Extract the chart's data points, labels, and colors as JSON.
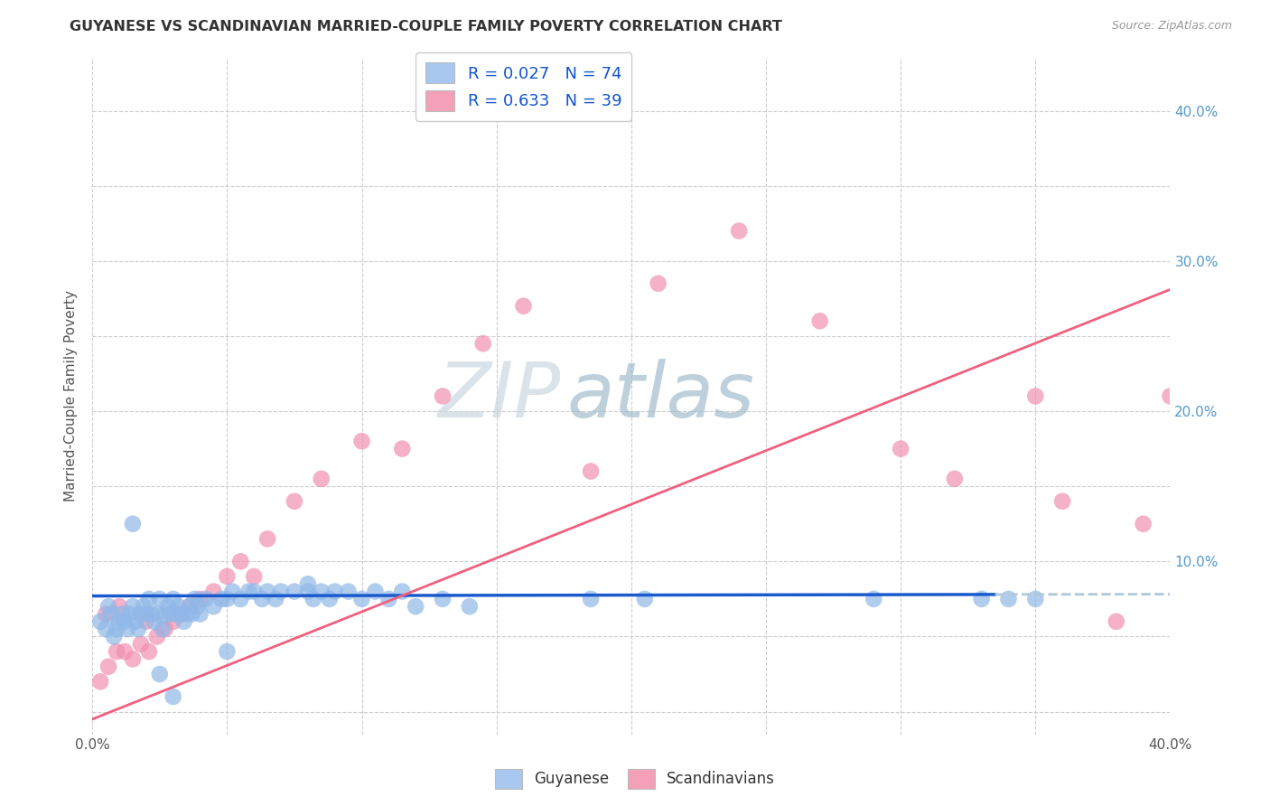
{
  "title": "GUYANESE VS SCANDINAVIAN MARRIED-COUPLE FAMILY POVERTY CORRELATION CHART",
  "source": "Source: ZipAtlas.com",
  "ylabel": "Married-Couple Family Poverty",
  "xlim": [
    0.0,
    0.4
  ],
  "ylim": [
    0.0,
    0.42
  ],
  "x_ticks": [
    0.0,
    0.05,
    0.1,
    0.15,
    0.2,
    0.25,
    0.3,
    0.35,
    0.4
  ],
  "y_ticks": [
    0.0,
    0.05,
    0.1,
    0.15,
    0.2,
    0.25,
    0.3,
    0.35,
    0.4
  ],
  "x_tick_labels": [
    "0.0%",
    "",
    "",
    "",
    "",
    "",
    "",
    "",
    "40.0%"
  ],
  "y_tick_labels_right": [
    "",
    "",
    "10.0%",
    "",
    "20.0%",
    "",
    "30.0%",
    "",
    "40.0%"
  ],
  "watermark": "ZIPatlas",
  "legend_color1": "#a8c8f0",
  "legend_color2": "#f4a0b8",
  "scatter_color1": "#90b8e8",
  "scatter_color2": "#f090b0",
  "line_color1": "#1a5acd",
  "line_color2": "#f06080",
  "line_ext_color": "#b0c8d8",
  "guyanese_x": [
    0.003,
    0.005,
    0.006,
    0.007,
    0.008,
    0.009,
    0.01,
    0.011,
    0.012,
    0.013,
    0.014,
    0.015,
    0.016,
    0.017,
    0.018,
    0.019,
    0.02,
    0.021,
    0.022,
    0.023,
    0.024,
    0.025,
    0.026,
    0.027,
    0.028,
    0.029,
    0.03,
    0.031,
    0.032,
    0.033,
    0.034,
    0.035,
    0.036,
    0.037,
    0.038,
    0.039,
    0.04,
    0.042,
    0.045,
    0.048,
    0.05,
    0.052,
    0.055,
    0.058,
    0.06,
    0.063,
    0.065,
    0.068,
    0.07,
    0.075,
    0.08,
    0.082,
    0.085,
    0.088,
    0.09,
    0.095,
    0.1,
    0.105,
    0.11,
    0.115,
    0.12,
    0.13,
    0.14,
    0.015,
    0.185,
    0.205,
    0.29,
    0.33,
    0.34,
    0.35,
    0.025,
    0.03,
    0.05,
    0.08
  ],
  "guyanese_y": [
    0.06,
    0.055,
    0.07,
    0.065,
    0.05,
    0.055,
    0.06,
    0.065,
    0.06,
    0.055,
    0.065,
    0.07,
    0.06,
    0.055,
    0.065,
    0.07,
    0.065,
    0.075,
    0.065,
    0.06,
    0.065,
    0.075,
    0.055,
    0.065,
    0.07,
    0.065,
    0.075,
    0.065,
    0.07,
    0.065,
    0.06,
    0.065,
    0.07,
    0.065,
    0.075,
    0.07,
    0.065,
    0.075,
    0.07,
    0.075,
    0.075,
    0.08,
    0.075,
    0.08,
    0.08,
    0.075,
    0.08,
    0.075,
    0.08,
    0.08,
    0.08,
    0.075,
    0.08,
    0.075,
    0.08,
    0.08,
    0.075,
    0.08,
    0.075,
    0.08,
    0.07,
    0.075,
    0.07,
    0.125,
    0.075,
    0.075,
    0.075,
    0.075,
    0.075,
    0.075,
    0.025,
    0.01,
    0.04,
    0.085
  ],
  "scandinavian_x": [
    0.003,
    0.006,
    0.009,
    0.012,
    0.015,
    0.018,
    0.021,
    0.024,
    0.027,
    0.03,
    0.033,
    0.036,
    0.04,
    0.045,
    0.05,
    0.055,
    0.065,
    0.075,
    0.085,
    0.1,
    0.115,
    0.13,
    0.145,
    0.16,
    0.185,
    0.21,
    0.24,
    0.27,
    0.3,
    0.32,
    0.35,
    0.36,
    0.38,
    0.39,
    0.4,
    0.005,
    0.01,
    0.02,
    0.06
  ],
  "scandinavian_y": [
    0.02,
    0.03,
    0.04,
    0.04,
    0.035,
    0.045,
    0.04,
    0.05,
    0.055,
    0.06,
    0.065,
    0.07,
    0.075,
    0.08,
    0.09,
    0.1,
    0.115,
    0.14,
    0.155,
    0.18,
    0.175,
    0.21,
    0.245,
    0.27,
    0.16,
    0.285,
    0.32,
    0.26,
    0.175,
    0.155,
    0.21,
    0.14,
    0.06,
    0.125,
    0.21,
    0.065,
    0.07,
    0.06,
    0.09
  ],
  "line1_x_solid_end": 0.335,
  "line1_x_dash_end": 0.4,
  "line1_intercept": 0.077,
  "line1_slope": 0.003,
  "line2_x_end": 0.4,
  "line2_intercept": -0.005,
  "line2_slope": 0.715
}
